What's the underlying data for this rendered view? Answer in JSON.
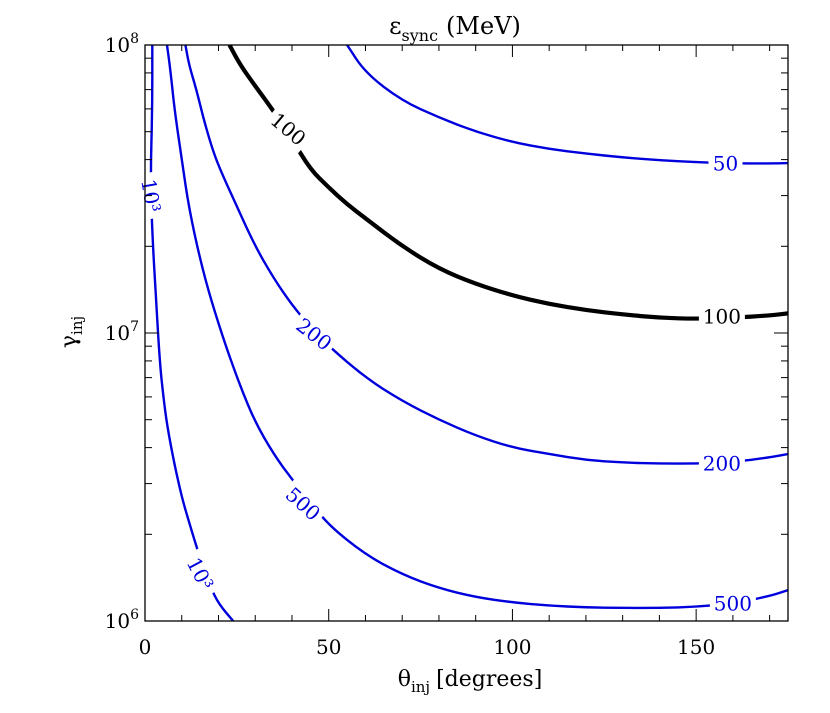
{
  "chart_data": {
    "type": "line",
    "title": "ε_sync (MeV)",
    "title_parts": {
      "symbol": "ε",
      "subscript": "sync",
      "unit": "(MeV)"
    },
    "xlabel": "θ_inj [degrees]",
    "xlabel_parts": {
      "symbol": "θ",
      "subscript": "inj",
      "unit": "[degrees]"
    },
    "ylabel": "γ_inj",
    "ylabel_parts": {
      "symbol": "γ",
      "subscript": "inj"
    },
    "xlim": [
      0,
      175
    ],
    "ylim": [
      1000000,
      100000000
    ],
    "y_scale": "log",
    "grid": false,
    "x_ticks": [
      {
        "value": 0,
        "label": "0"
      },
      {
        "value": 50,
        "label": "50"
      },
      {
        "value": 100,
        "label": "100"
      },
      {
        "value": 150,
        "label": "150"
      }
    ],
    "y_ticks": [
      {
        "value": 1000000,
        "base": "10",
        "exp": "6"
      },
      {
        "value": 10000000,
        "base": "10",
        "exp": "7"
      },
      {
        "value": 100000000,
        "base": "10",
        "exp": "8"
      }
    ],
    "series": [
      {
        "name": "50",
        "color": "#0000dd",
        "labels": [
          {
            "x": 158,
            "y": 38800000,
            "text": "50",
            "angle": 0
          }
        ],
        "points": [
          [
            55,
            100000000
          ],
          [
            60,
            80000000
          ],
          [
            70,
            64000000
          ],
          [
            80,
            56000000
          ],
          [
            90,
            50000000
          ],
          [
            100,
            46000000
          ],
          [
            110,
            43500000
          ],
          [
            120,
            42000000
          ],
          [
            130,
            40700000
          ],
          [
            140,
            39800000
          ],
          [
            150,
            39200000
          ],
          [
            160,
            38800000
          ],
          [
            170,
            38800000
          ],
          [
            175,
            38900000
          ]
        ]
      },
      {
        "name": "100",
        "color": "#000000",
        "bold": true,
        "labels": [
          {
            "x": 39,
            "y": 51000000,
            "text": "100",
            "angle": 40
          },
          {
            "x": 157,
            "y": 11400000,
            "text": "100",
            "angle": 0
          }
        ],
        "points": [
          [
            23,
            100000000
          ],
          [
            26,
            85000000
          ],
          [
            30,
            72000000
          ],
          [
            35,
            59000000
          ],
          [
            40,
            47000000
          ],
          [
            45,
            37000000
          ],
          [
            50,
            32000000
          ],
          [
            55,
            28000000
          ],
          [
            60,
            25000000
          ],
          [
            70,
            20000000
          ],
          [
            80,
            16700000
          ],
          [
            90,
            14800000
          ],
          [
            100,
            13500000
          ],
          [
            110,
            12600000
          ],
          [
            120,
            12000000
          ],
          [
            130,
            11600000
          ],
          [
            140,
            11300000
          ],
          [
            150,
            11200000
          ],
          [
            160,
            11300000
          ],
          [
            170,
            11500000
          ],
          [
            175,
            11700000
          ]
        ]
      },
      {
        "name": "200",
        "color": "#0000dd",
        "labels": [
          {
            "x": 46,
            "y": 9900000,
            "text": "200",
            "angle": 38
          },
          {
            "x": 157,
            "y": 3520000,
            "text": "200",
            "angle": 0
          }
        ],
        "points": [
          [
            11,
            100000000
          ],
          [
            12,
            85000000
          ],
          [
            14,
            70000000
          ],
          [
            16,
            55000000
          ],
          [
            18,
            45000000
          ],
          [
            20,
            38000000
          ],
          [
            25,
            27500000
          ],
          [
            30,
            20000000
          ],
          [
            35,
            15500000
          ],
          [
            40,
            12500000
          ],
          [
            45,
            10500000
          ],
          [
            50,
            9000000
          ],
          [
            60,
            7000000
          ],
          [
            70,
            5800000
          ],
          [
            80,
            5000000
          ],
          [
            90,
            4400000
          ],
          [
            100,
            4000000
          ],
          [
            110,
            3800000
          ],
          [
            120,
            3620000
          ],
          [
            130,
            3550000
          ],
          [
            140,
            3520000
          ],
          [
            150,
            3520000
          ],
          [
            160,
            3560000
          ],
          [
            170,
            3700000
          ],
          [
            175,
            3800000
          ]
        ]
      },
      {
        "name": "500",
        "color": "#0000dd",
        "labels": [
          {
            "x": 43,
            "y": 2550000,
            "text": "500",
            "angle": 42
          },
          {
            "x": 160,
            "y": 1150000,
            "text": "500",
            "angle": 0
          }
        ],
        "points": [
          [
            6,
            100000000
          ],
          [
            7,
            80000000
          ],
          [
            8,
            60000000
          ],
          [
            10,
            40000000
          ],
          [
            12,
            27000000
          ],
          [
            15,
            18000000
          ],
          [
            18,
            13000000
          ],
          [
            22,
            9000000
          ],
          [
            26,
            6500000
          ],
          [
            30,
            4900000
          ],
          [
            35,
            3800000
          ],
          [
            40,
            3100000
          ],
          [
            45,
            2600000
          ],
          [
            50,
            2150000
          ],
          [
            60,
            1700000
          ],
          [
            70,
            1450000
          ],
          [
            80,
            1300000
          ],
          [
            90,
            1210000
          ],
          [
            100,
            1160000
          ],
          [
            110,
            1130000
          ],
          [
            120,
            1115000
          ],
          [
            130,
            1110000
          ],
          [
            140,
            1110000
          ],
          [
            150,
            1120000
          ],
          [
            160,
            1150000
          ],
          [
            170,
            1220000
          ],
          [
            175,
            1280000
          ]
        ]
      },
      {
        "name": "10³",
        "color": "#0000dd",
        "labels": [
          {
            "x": 1.6,
            "y": 30000000,
            "text": "10³",
            "angle": 80
          },
          {
            "x": 15,
            "y": 1460000,
            "text": "10³",
            "angle": 62
          }
        ],
        "points": [
          [
            2,
            100000000
          ],
          [
            2,
            60000000
          ],
          [
            1.5,
            35000000
          ],
          [
            2,
            22000000
          ],
          [
            3,
            13000000
          ],
          [
            4,
            8000000
          ],
          [
            5,
            6000000
          ],
          [
            6,
            4800000
          ],
          [
            8,
            3500000
          ],
          [
            10,
            2700000
          ],
          [
            12,
            2200000
          ],
          [
            15,
            1650000
          ],
          [
            18,
            1300000
          ],
          [
            20,
            1150000
          ],
          [
            24,
            1000000
          ]
        ]
      }
    ]
  }
}
